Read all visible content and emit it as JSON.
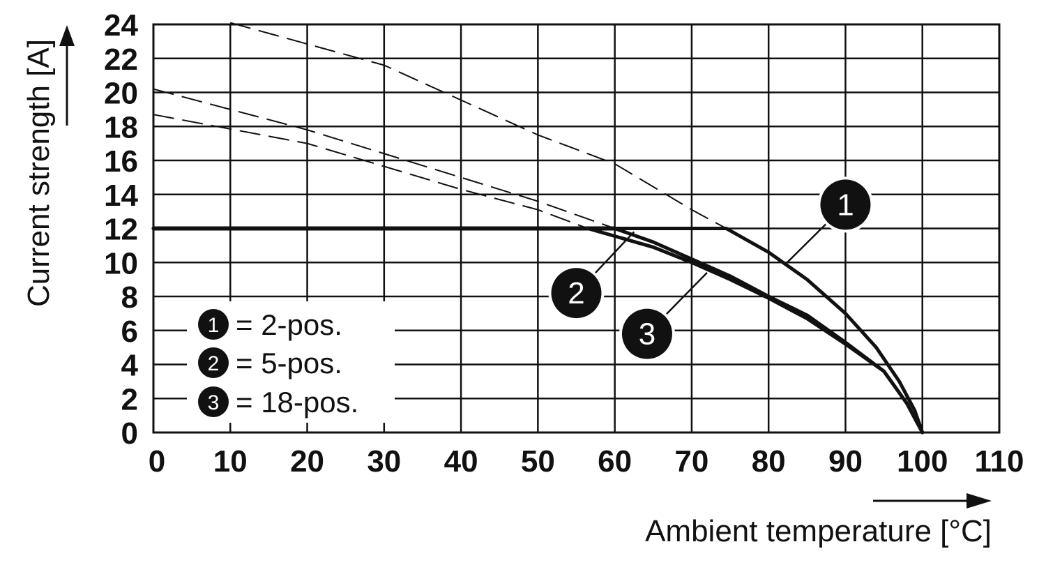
{
  "chart_data": {
    "type": "line",
    "xlabel": "Ambient temperature [°C]",
    "ylabel": "Current strength [A]",
    "xlim": [
      0,
      110
    ],
    "ylim": [
      0,
      24
    ],
    "x_ticks": [
      0,
      10,
      20,
      30,
      40,
      50,
      60,
      70,
      80,
      90,
      100,
      110
    ],
    "y_ticks": [
      0,
      2,
      4,
      6,
      8,
      10,
      12,
      14,
      16,
      18,
      20,
      22,
      24
    ],
    "x_tick_labels": [
      "0",
      "10",
      "20",
      "30",
      "40",
      "50",
      "60",
      "70",
      "80",
      "90",
      "100",
      "110"
    ],
    "y_tick_labels": [
      "0",
      "2",
      "4",
      "6",
      "8",
      "10",
      "12",
      "14",
      "16",
      "18",
      "20",
      "22",
      "24"
    ],
    "grid": true,
    "limit_line": {
      "y": 12
    },
    "series": [
      {
        "marker": "1",
        "legend_label": "= 2-pos.",
        "solid": [
          [
            0,
            12
          ],
          [
            74.5,
            12
          ],
          [
            80,
            10.6
          ],
          [
            85,
            9.0
          ],
          [
            90,
            7.0
          ],
          [
            94,
            5.0
          ],
          [
            97,
            3.0
          ],
          [
            99,
            1.3
          ],
          [
            100,
            0
          ]
        ],
        "dashed": [
          [
            10,
            24.1
          ],
          [
            30,
            21.6
          ],
          [
            50,
            17.5
          ],
          [
            60,
            15.8
          ],
          [
            70,
            13.1
          ],
          [
            74.5,
            12
          ]
        ]
      },
      {
        "marker": "2",
        "legend_label": "= 5-pos.",
        "solid": [
          [
            0,
            12
          ],
          [
            60,
            12
          ],
          [
            65,
            11.2
          ],
          [
            70,
            10.2
          ],
          [
            75,
            9.2
          ],
          [
            80,
            8.0
          ],
          [
            85,
            6.9
          ],
          [
            90,
            5.3
          ],
          [
            95,
            3.6
          ],
          [
            98,
            1.7
          ],
          [
            100,
            0
          ]
        ],
        "dashed": [
          [
            0,
            20.2
          ],
          [
            20,
            17.8
          ],
          [
            40,
            15.0
          ],
          [
            50,
            13.6
          ],
          [
            60,
            12
          ]
        ]
      },
      {
        "marker": "3",
        "legend_label": "= 18-pos.",
        "solid": [
          [
            0,
            12
          ],
          [
            56.5,
            12
          ],
          [
            65,
            10.9
          ],
          [
            70,
            10.0
          ],
          [
            75,
            9.0
          ],
          [
            80,
            7.9
          ],
          [
            85,
            6.7
          ],
          [
            90,
            5.2
          ],
          [
            95,
            3.6
          ],
          [
            98,
            1.7
          ],
          [
            100,
            0
          ]
        ],
        "dashed": [
          [
            0,
            18.7
          ],
          [
            20,
            17.0
          ],
          [
            40,
            14.3
          ],
          [
            50,
            13.1
          ],
          [
            56.5,
            12
          ]
        ]
      }
    ],
    "callouts": [
      {
        "label": "1",
        "x": 90,
        "y": 13.4,
        "pointer_to": [
          82.2,
          9.9
        ]
      },
      {
        "label": "2",
        "x": 55,
        "y": 8.2,
        "pointer_to": [
          62.5,
          11.8
        ]
      },
      {
        "label": "3",
        "x": 64.2,
        "y": 5.8,
        "pointer_to": [
          72,
          9.4
        ]
      }
    ],
    "legend": {
      "placement": "bottom-left"
    }
  }
}
